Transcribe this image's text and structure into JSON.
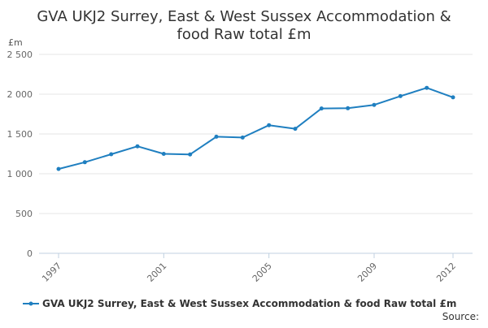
{
  "chart_data": {
    "type": "line",
    "title_line1": "GVA UKJ2 Surrey, East & West Sussex Accommodation &",
    "title_line2": "food Raw total £m",
    "yunit": "£m",
    "ylim": [
      0,
      2500
    ],
    "yticks": [
      0,
      500,
      1000,
      1500,
      2000,
      2500
    ],
    "ytick_labels": [
      "0",
      "500",
      "1 000",
      "1 500",
      "2 000",
      "2 500"
    ],
    "xlim": [
      1997,
      2012
    ],
    "xticks": [
      1997,
      2001,
      2005,
      2009,
      2012
    ],
    "xtick_labels": [
      "1997",
      "2001",
      "2005",
      "2009",
      "2012"
    ],
    "grid": true,
    "legend_position": "bottom",
    "series": [
      {
        "name": "GVA UKJ2 Surrey, East & West Sussex Accommodation & food Raw total £m",
        "color": "#1f7fc0",
        "x": [
          1997,
          1998,
          1999,
          2000,
          2001,
          2002,
          2003,
          2004,
          2005,
          2006,
          2007,
          2008,
          2009,
          2010,
          2011,
          2012
        ],
        "values": [
          1060,
          1145,
          1245,
          1345,
          1250,
          1243,
          1465,
          1455,
          1610,
          1565,
          1820,
          1823,
          1865,
          1975,
          2080,
          1960
        ]
      }
    ]
  },
  "footer": {
    "source_label": "Source:"
  }
}
